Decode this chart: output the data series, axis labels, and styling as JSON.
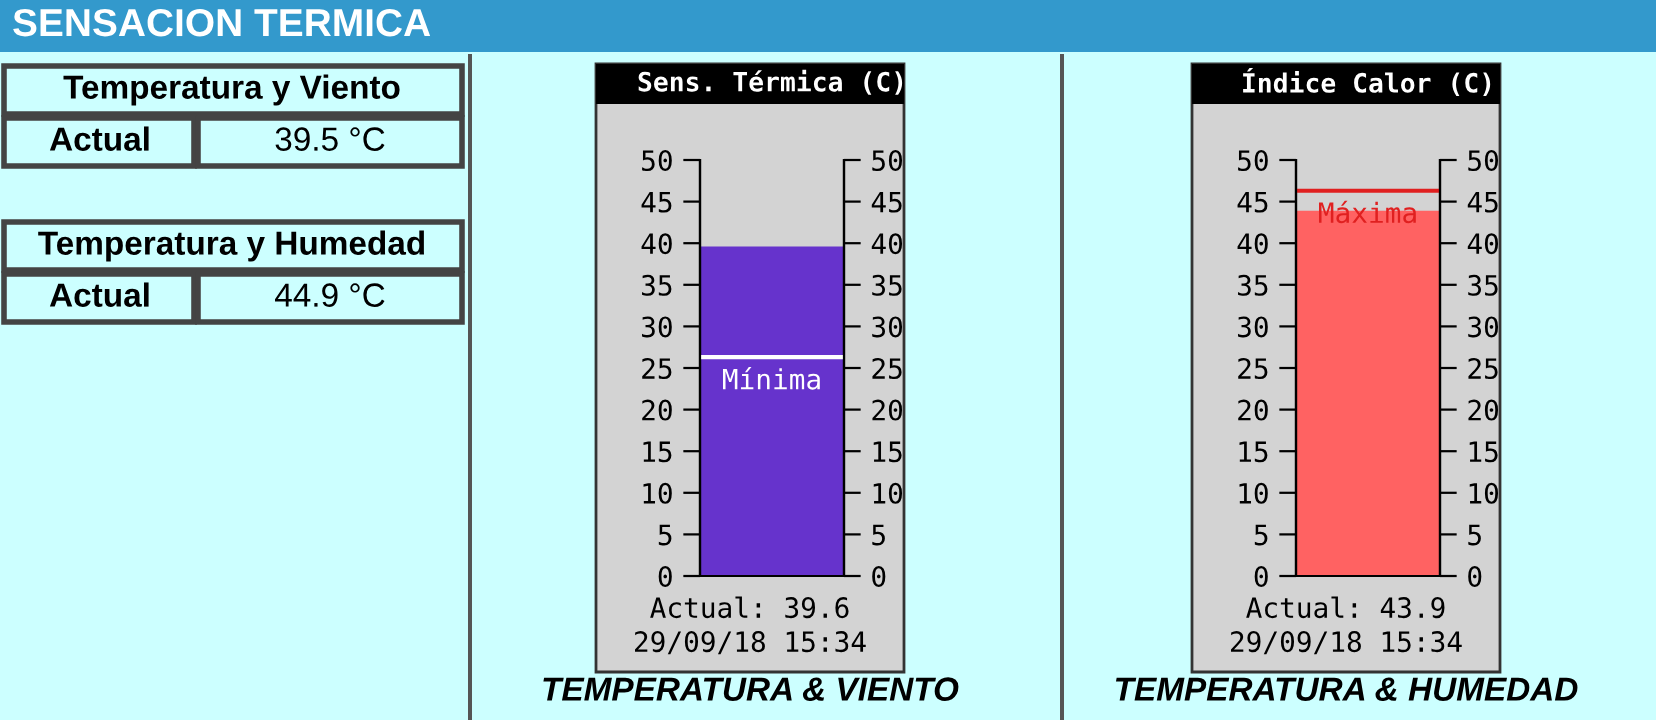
{
  "chart_data": [
    {
      "type": "other",
      "title": "SENSACION TERMICA",
      "annotations": [
        "Temperatura y Viento",
        "Actual",
        "39.5 °C",
        "Temperatura y Humedad",
        "Actual",
        "44.9 °C"
      ]
    },
    {
      "type": "bar",
      "title": "Sens. Térmica (C)",
      "categories": [
        null
      ],
      "values": [
        39.6
      ],
      "color": "#6633cc",
      "ylim": [
        0,
        50
      ],
      "yticks": [
        0,
        5,
        10,
        15,
        20,
        25,
        30,
        35,
        40,
        45,
        50
      ],
      "y2lim": [
        0,
        50
      ],
      "y2ticks": [
        0,
        5,
        10,
        15,
        20,
        25,
        30,
        35,
        40,
        45,
        50
      ],
      "ref_lines": [
        {
          "axis": "y",
          "value": 26.3,
          "label": "Mínima",
          "color": "#ffffff"
        }
      ],
      "annotations": [
        "Actual: 39.6",
        "29/09/18 15:34",
        "TEMPERATURA & VIENTO"
      ],
      "grid": false,
      "legend": false
    },
    {
      "type": "bar",
      "title": "Índice Calor (C)",
      "categories": [
        null
      ],
      "values": [
        43.9
      ],
      "color": "#ff6262",
      "ylim": [
        0,
        50
      ],
      "yticks": [
        0,
        5,
        10,
        15,
        20,
        25,
        30,
        35,
        40,
        45,
        50
      ],
      "y2lim": [
        0,
        50
      ],
      "y2ticks": [
        0,
        5,
        10,
        15,
        20,
        25,
        30,
        35,
        40,
        45,
        50
      ],
      "ref_lines": [
        {
          "axis": "y",
          "value": 46.3,
          "label": "Máxima",
          "color": "#e02020"
        }
      ],
      "annotations": [
        "Actual: 43.9",
        "29/09/18 15:34",
        "TEMPERATURA & HUMEDAD"
      ],
      "grid": false,
      "legend": false
    }
  ]
}
